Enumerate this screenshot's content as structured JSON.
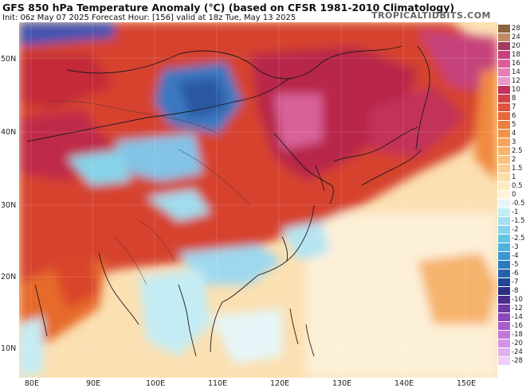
{
  "header": {
    "title": "GFS 850 hPa Temperature Anomaly (℃) (based on CFSR 1981-2010 Climatology)",
    "subtitle": "Init: 06z May 07 2025   Forecast Hour: [156]   valid at 18z Tue, May 13 2025",
    "brand": "TROPICALTIDBITS.COM"
  },
  "axes": {
    "lat_labels": [
      "50N",
      "40N",
      "30N",
      "20N",
      "10N"
    ],
    "lon_labels": [
      "80E",
      "90E",
      "100E",
      "110E",
      "120E",
      "130E",
      "140E",
      "150E"
    ]
  },
  "colorbar": {
    "levels": [
      "28",
      "24",
      "20",
      "18",
      "16",
      "14",
      "12",
      "10",
      "8",
      "7",
      "6",
      "5",
      "4",
      "3",
      "2.5",
      "2",
      "1.5",
      "1",
      "0.5",
      "0",
      "-0.5",
      "-1",
      "-1.5",
      "-2",
      "-2.5",
      "-3",
      "-4",
      "-5",
      "-6",
      "-7",
      "-8",
      "-10",
      "-12",
      "-14",
      "-16",
      "-18",
      "-20",
      "-24",
      "-28"
    ],
    "colors": [
      "#8b6340",
      "#c08a62",
      "#a33b61",
      "#c6427b",
      "#dc5b98",
      "#e57fb4",
      "#e99ac6",
      "#c2325a",
      "#d24248",
      "#e0523c",
      "#e6683a",
      "#ec7f3e",
      "#f29248",
      "#f4a55a",
      "#f6b36c",
      "#f8c27e",
      "#fad092",
      "#fcdfa8",
      "#fdebc2",
      "#fdf3dc",
      "#e6f6f8",
      "#c4ecf4",
      "#a5e0ef",
      "#86d3ea",
      "#66c4e3",
      "#4fb2dc",
      "#3a98d0",
      "#2a7cc0",
      "#2561ad",
      "#224796",
      "#2b3085",
      "#4a2d8e",
      "#6e38a6",
      "#8e45bb",
      "#a95ccb",
      "#c078d9",
      "#d493e6",
      "#e2b0ef",
      "#f0cff7"
    ]
  }
}
